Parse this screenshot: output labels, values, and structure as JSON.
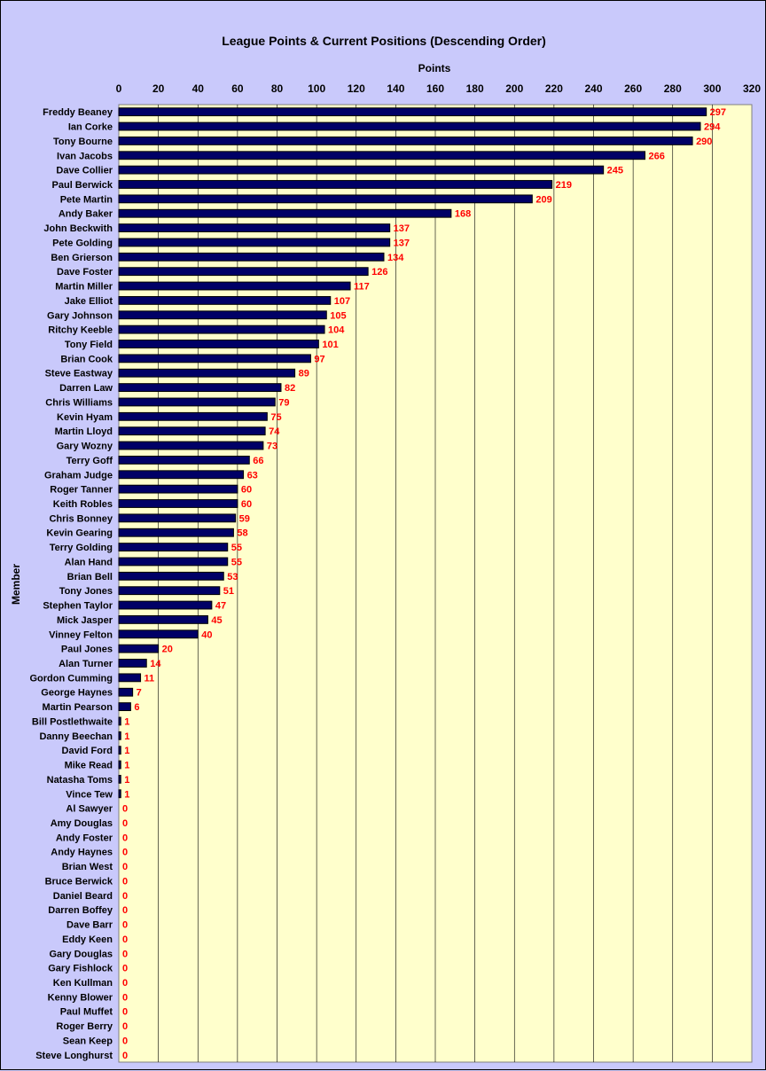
{
  "chart_data": {
    "type": "bar",
    "orientation": "horizontal",
    "title": "League Points & Current Positions (Descending Order)",
    "xlabel": "Points",
    "ylabel": "Member",
    "xlim": [
      0,
      320
    ],
    "x_ticks": [
      0,
      20,
      40,
      60,
      80,
      100,
      120,
      140,
      160,
      180,
      200,
      220,
      240,
      260,
      280,
      300,
      320
    ],
    "x_axis_position": "top",
    "grid": true,
    "legend": "none",
    "categories": [
      "Freddy Beaney",
      "Ian Corke",
      "Tony Bourne",
      "Ivan Jacobs",
      "Dave Collier",
      "Paul Berwick",
      "Pete Martin",
      "Andy Baker",
      "John Beckwith",
      "Pete Golding",
      "Ben Grierson",
      "Dave Foster",
      "Martin Miller",
      "Jake Elliot",
      "Gary Johnson",
      "Ritchy Keeble",
      "Tony Field",
      "Brian Cook",
      "Steve Eastway",
      "Darren Law",
      "Chris Williams",
      "Kevin Hyam",
      "Martin Lloyd",
      "Gary Wozny",
      "Terry Goff",
      "Graham Judge",
      "Roger Tanner",
      "Keith Robles",
      "Chris Bonney",
      "Kevin Gearing",
      "Terry Golding",
      "Alan Hand",
      "Brian Bell",
      "Tony Jones",
      "Stephen Taylor",
      "Mick Jasper",
      "Vinney Felton",
      "Paul Jones",
      "Alan Turner",
      "Gordon Cumming",
      "George Haynes",
      "Martin Pearson",
      "Bill Postlethwaite",
      "Danny Beechan",
      "David Ford",
      "Mike Read",
      "Natasha Toms",
      "Vince Tew",
      "Al Sawyer",
      "Amy Douglas",
      "Andy Foster",
      "Andy Haynes",
      "Brian West",
      "Bruce Berwick",
      "Daniel Beard",
      "Darren Boffey",
      "Dave Barr",
      "Eddy Keen",
      "Gary Douglas",
      "Gary Fishlock",
      "Ken Kullman",
      "Kenny Blower",
      "Paul Muffet",
      "Roger Berry",
      "Sean Keep",
      "Steve Longhurst"
    ],
    "values": [
      297,
      294,
      290,
      266,
      245,
      219,
      209,
      168,
      137,
      137,
      134,
      126,
      117,
      107,
      105,
      104,
      101,
      97,
      89,
      82,
      79,
      75,
      74,
      73,
      66,
      63,
      60,
      60,
      59,
      58,
      55,
      55,
      53,
      51,
      47,
      45,
      40,
      20,
      14,
      11,
      7,
      6,
      1,
      1,
      1,
      1,
      1,
      1,
      0,
      0,
      0,
      0,
      0,
      0,
      0,
      0,
      0,
      0,
      0,
      0,
      0,
      0,
      0,
      0,
      0,
      0
    ],
    "colors": {
      "bar_fill": "#000066",
      "bar_stroke": "#000000",
      "plot_background": "#ffffcc",
      "chart_background": "#c9c9fb",
      "gridline": "#000000",
      "data_label": "#ff0000"
    }
  }
}
